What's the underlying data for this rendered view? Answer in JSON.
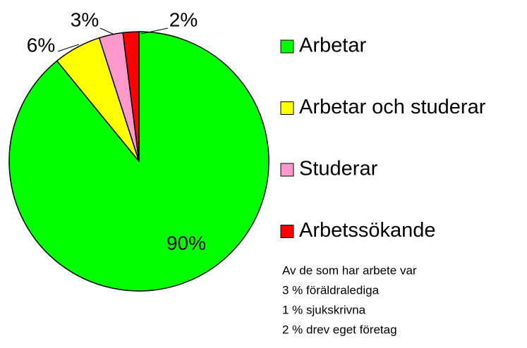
{
  "chart_data": {
    "type": "pie",
    "categories": [
      "Arbetar",
      "Arbetar och studerar",
      "Studerar",
      "Arbetssökande"
    ],
    "values": [
      90,
      6,
      3,
      2
    ],
    "value_labels": [
      "90%",
      "6%",
      "3%",
      "2%"
    ],
    "colors": [
      "#00ff00",
      "#ffff00",
      "#ff99cc",
      "#ff0000"
    ],
    "annotations": [
      "Av de som har arbete var",
      "3 % föräldralediga",
      "1 % sjukskrivna",
      "2 % drev eget företag"
    ]
  }
}
